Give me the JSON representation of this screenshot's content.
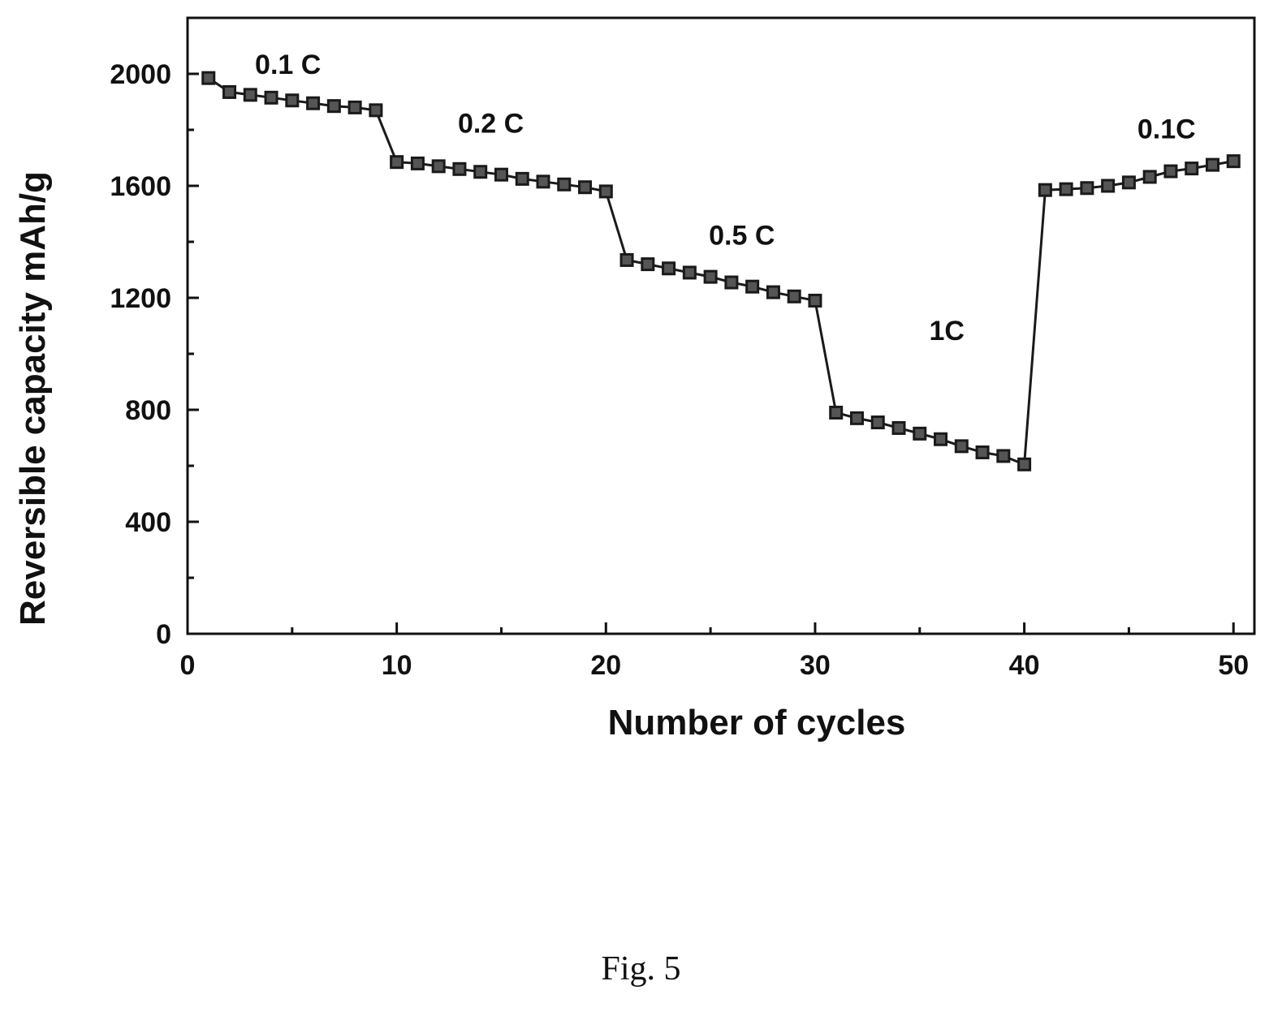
{
  "caption": "Fig. 5",
  "chart_data": {
    "type": "line",
    "xlabel": "Number of cycles",
    "ylabel": "Reversible capacity mAh/g",
    "xlim": [
      0,
      51
    ],
    "ylim": [
      0,
      2200
    ],
    "x_ticks": [
      0,
      10,
      20,
      30,
      40,
      50
    ],
    "y_ticks": [
      0,
      400,
      800,
      1200,
      1600,
      2000
    ],
    "grid": false,
    "marker": "square",
    "color": "#1a1a1a",
    "series": [
      {
        "x": [
          1,
          2,
          3,
          4,
          5,
          6,
          7,
          8,
          9,
          10,
          11,
          12,
          13,
          14,
          15,
          16,
          17,
          18,
          19,
          20,
          21,
          22,
          23,
          24,
          25,
          26,
          27,
          28,
          29,
          30,
          31,
          32,
          33,
          34,
          35,
          36,
          37,
          38,
          39,
          40,
          41,
          42,
          43,
          44,
          45,
          46,
          47,
          48,
          49,
          50
        ],
        "values": [
          1985,
          1935,
          1925,
          1915,
          1905,
          1895,
          1885,
          1880,
          1870,
          1685,
          1680,
          1670,
          1660,
          1650,
          1640,
          1625,
          1615,
          1605,
          1595,
          1580,
          1335,
          1320,
          1305,
          1290,
          1275,
          1255,
          1240,
          1220,
          1205,
          1190,
          790,
          770,
          755,
          735,
          715,
          695,
          670,
          648,
          635,
          605,
          1585,
          1588,
          1592,
          1600,
          1612,
          1632,
          1652,
          1662,
          1675,
          1688
        ]
      }
    ],
    "annotations": [
      {
        "text": "0.1 C",
        "x": 4.8,
        "y": 2000
      },
      {
        "text": "0.2 C",
        "x": 14.5,
        "y": 1790
      },
      {
        "text": "0.5 C",
        "x": 26.5,
        "y": 1390
      },
      {
        "text": "1C",
        "x": 36.3,
        "y": 1050
      },
      {
        "text": "0.1C",
        "x": 46.8,
        "y": 1770
      }
    ]
  }
}
